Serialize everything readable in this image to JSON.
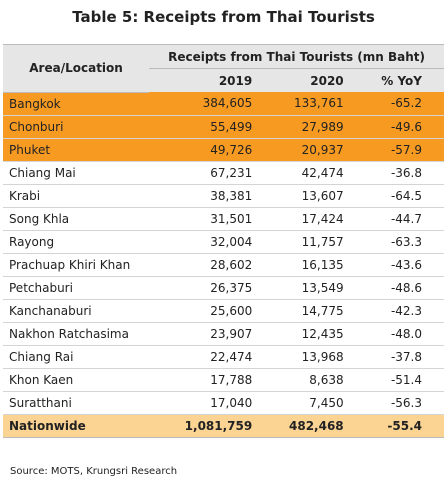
{
  "title": "Table 5: Receipts from Thai Tourists",
  "table": {
    "header": {
      "area": "Area/Location",
      "group": "Receipts from Thai Tourists (mn Baht)",
      "columns": [
        "2019",
        "2020",
        "% YoY"
      ]
    },
    "rows": [
      [
        "Bangkok",
        "384,605",
        "133,761",
        "-65.2"
      ],
      [
        "Chonburi",
        "55,499",
        "27,989",
        "-49.6"
      ],
      [
        "Phuket",
        "49,726",
        "20,937",
        "-57.9"
      ],
      [
        "Chiang Mai",
        "67,231",
        "42,474",
        "-36.8"
      ],
      [
        "Krabi",
        "38,381",
        "13,607",
        "-64.5"
      ],
      [
        "Song Khla",
        "31,501",
        "17,424",
        "-44.7"
      ],
      [
        "Rayong",
        "32,004",
        "11,757",
        "-63.3"
      ],
      [
        "Prachuap Khiri Khan",
        "28,602",
        "16,135",
        "-43.6"
      ],
      [
        "Petchaburi",
        "26,375",
        "13,549",
        "-48.6"
      ],
      [
        "Kanchanaburi",
        "25,600",
        "14,775",
        "-42.3"
      ],
      [
        "Nakhon Ratchasima",
        "23,907",
        "12,435",
        "-48.0"
      ],
      [
        "Chiang Rai",
        "22,474",
        "13,968",
        "-37.8"
      ],
      [
        "Khon Kaen",
        "17,788",
        "8,638",
        "-51.4"
      ],
      [
        "Suratthani",
        "17,040",
        "7,450",
        "-56.3"
      ]
    ],
    "total": [
      "Nationwide",
      "1,081,759",
      "482,468",
      "-55.4"
    ]
  },
  "source": "Source: MOTS, Krungsri Research"
}
